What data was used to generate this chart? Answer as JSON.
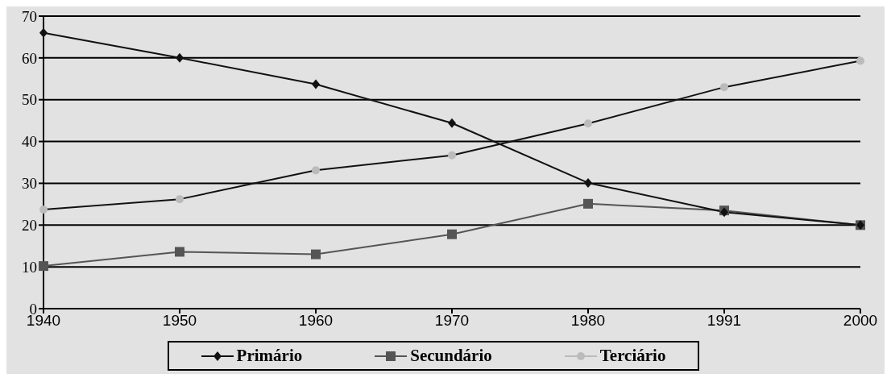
{
  "chart_data": {
    "type": "line",
    "categories": [
      "1940",
      "1950",
      "1960",
      "1970",
      "1980",
      "1991",
      "2000"
    ],
    "series": [
      {
        "name": "Primário",
        "color": "#111111",
        "marker": "diamond",
        "values": [
          66,
          60,
          53.7,
          44.4,
          30.1,
          23.1,
          20
        ]
      },
      {
        "name": "Secundário",
        "color": "#555555",
        "marker": "square",
        "values": [
          10.2,
          13.6,
          13,
          17.8,
          25.1,
          23.5,
          20
        ]
      },
      {
        "name": "Terciário",
        "color": "#bbbbbb",
        "marker": "circle",
        "values": [
          23.7,
          26.2,
          33.1,
          36.7,
          44.3,
          53,
          59.3
        ]
      }
    ],
    "ylim": [
      0,
      70
    ],
    "yticks": [
      0,
      10,
      20,
      30,
      40,
      50,
      60,
      70
    ],
    "grid": "y",
    "legend": "bottom",
    "line_style": "solid"
  }
}
